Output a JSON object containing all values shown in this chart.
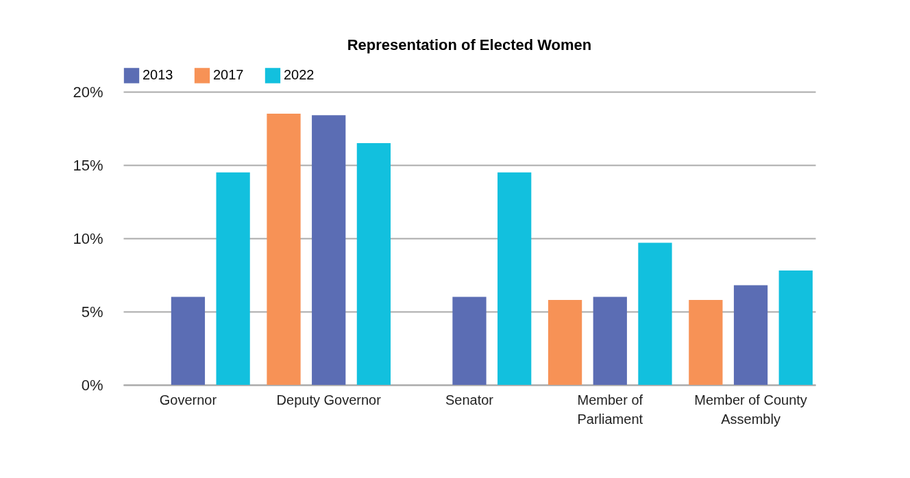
{
  "chart_data": {
    "type": "bar",
    "title": "Representation of Elected Women",
    "categories": [
      "Governor",
      "Deputy Governor",
      "Senator",
      "Member of Parliament",
      "Member of County Assembly"
    ],
    "series": [
      {
        "name": "2017",
        "color": "#f79256",
        "values": [
          null,
          18.5,
          null,
          5.8,
          5.8
        ]
      },
      {
        "name": "2013",
        "color": "#5b6db4",
        "values": [
          6.0,
          18.4,
          6.0,
          6.0,
          6.8
        ]
      },
      {
        "name": "2022",
        "color": "#12c0de",
        "values": [
          14.5,
          16.5,
          14.5,
          9.7,
          7.8
        ]
      }
    ],
    "ylim": [
      0,
      20
    ],
    "yticks": [
      {
        "value": 0,
        "label": "0%"
      },
      {
        "value": 5,
        "label": "5%"
      },
      {
        "value": 10,
        "label": "10%"
      },
      {
        "value": 15,
        "label": "15%"
      },
      {
        "value": 20,
        "label": "20%"
      }
    ],
    "grid": "y",
    "legend": "top"
  }
}
